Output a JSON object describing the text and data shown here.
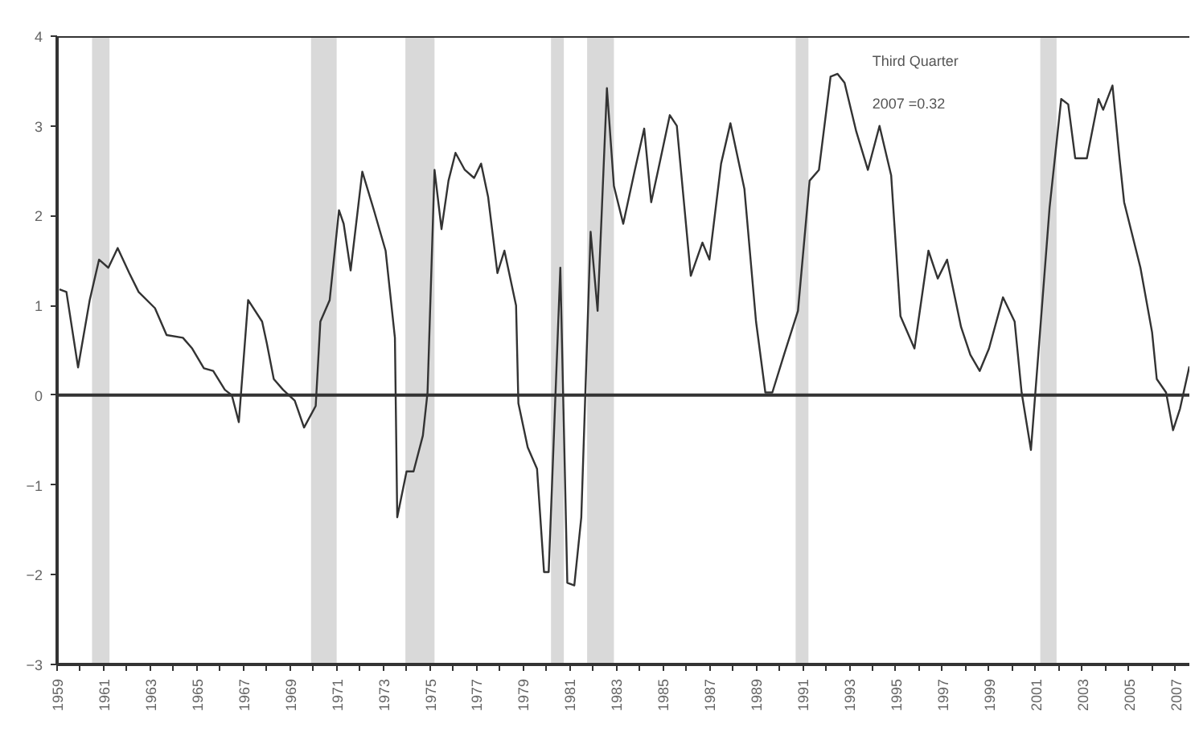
{
  "chart_data": {
    "type": "line",
    "annotations": [
      "Third Quarter",
      "2007 =0.32"
    ],
    "x": [
      1959.1,
      1959.4,
      1959.9,
      1960.4,
      1960.8,
      1961.2,
      1961.6,
      1962.1,
      1962.5,
      1963.2,
      1963.7,
      1964.4,
      1964.8,
      1965.3,
      1965.7,
      1966.2,
      1966.5,
      1966.8,
      1967.2,
      1967.8,
      1968.0,
      1968.3,
      1968.7,
      1969.2,
      1969.6,
      1970.1,
      1970.3,
      1970.7,
      1971.1,
      1971.3,
      1971.6,
      1972.1,
      1972.6,
      1973.1,
      1973.5,
      1973.6,
      1974.0,
      1974.3,
      1974.7,
      1974.9,
      1975.2,
      1975.5,
      1975.8,
      1976.1,
      1976.5,
      1976.9,
      1977.2,
      1977.5,
      1977.9,
      1978.2,
      1978.7,
      1978.8,
      1979.2,
      1979.6,
      1979.9,
      1980.1,
      1980.6,
      1980.9,
      1981.2,
      1981.5,
      1981.9,
      1982.2,
      1982.6,
      1982.9,
      1983.3,
      1983.8,
      1984.2,
      1984.5,
      1984.8,
      1985.3,
      1985.6,
      1986.2,
      1986.7,
      1987.0,
      1987.5,
      1987.9,
      1988.5,
      1989.0,
      1989.4,
      1989.7,
      1990.2,
      1990.8,
      1991.3,
      1991.7,
      1992.2,
      1992.5,
      1992.8,
      1993.3,
      1993.8,
      1994.3,
      1994.8,
      1995.2,
      1995.8,
      1996.4,
      1996.8,
      1997.2,
      1997.8,
      1998.2,
      1998.6,
      1999.0,
      1999.6,
      2000.1,
      2000.4,
      2000.8,
      2001.6,
      2002.1,
      2002.4,
      2002.7,
      2003.2,
      2003.7,
      2003.9,
      2004.3,
      2004.6,
      2004.8,
      2005.5,
      2006.0,
      2006.2,
      2006.6,
      2006.9,
      2007.2,
      2007.6
    ],
    "series": [
      {
        "color": "#333333",
        "values": [
          1.18,
          1.15,
          0.31,
          1.06,
          1.51,
          1.42,
          1.64,
          1.36,
          1.15,
          0.97,
          0.67,
          0.64,
          0.52,
          0.3,
          0.27,
          0.06,
          0.0,
          -0.3,
          1.06,
          0.82,
          0.58,
          0.18,
          0.06,
          -0.06,
          -0.36,
          -0.12,
          0.82,
          1.06,
          2.06,
          1.91,
          1.39,
          2.49,
          2.06,
          1.61,
          0.64,
          -1.36,
          -0.85,
          -0.85,
          -0.45,
          0.03,
          2.51,
          1.85,
          2.39,
          2.7,
          2.51,
          2.42,
          2.58,
          2.21,
          1.36,
          1.61,
          1.0,
          -0.09,
          -0.58,
          -0.82,
          -1.97,
          -1.97,
          1.42,
          -2.09,
          -2.12,
          -1.36,
          1.82,
          0.94,
          3.42,
          2.33,
          1.91,
          2.51,
          2.97,
          2.15,
          2.51,
          3.12,
          3.0,
          1.33,
          1.7,
          1.51,
          2.58,
          3.03,
          2.3,
          0.82,
          0.03,
          0.03,
          0.45,
          0.94,
          2.39,
          2.51,
          3.55,
          3.58,
          3.48,
          2.94,
          2.51,
          3.0,
          2.45,
          0.88,
          0.52,
          1.61,
          1.3,
          1.51,
          0.76,
          0.45,
          0.27,
          0.52,
          1.09,
          0.82,
          0.03,
          -0.61,
          2.09,
          3.3,
          3.24,
          2.64,
          2.64,
          3.3,
          3.18,
          3.45,
          2.64,
          2.15,
          1.42,
          0.7,
          0.18,
          0.03,
          -0.39,
          -0.15,
          0.32
        ]
      }
    ],
    "xlim": [
      1959,
      2007.6
    ],
    "xticks": [
      1959,
      {
        "value": 1960,
        "label": null
      },
      1961,
      {
        "value": 1962,
        "label": null
      },
      1963,
      {
        "value": 1964,
        "label": null
      },
      1965,
      {
        "value": 1966,
        "label": null
      },
      1967,
      {
        "value": 1968,
        "label": null
      },
      1969,
      {
        "value": 1970,
        "label": null
      },
      1971,
      {
        "value": 1972,
        "label": null
      },
      1973,
      {
        "value": 1974,
        "label": null
      },
      1975,
      {
        "value": 1976,
        "label": null
      },
      1977,
      {
        "value": 1978,
        "label": null
      },
      1979,
      {
        "value": 1980,
        "label": null
      },
      1981,
      {
        "value": 1982,
        "label": null
      },
      1983,
      {
        "value": 1984,
        "label": null
      },
      1985,
      {
        "value": 1986,
        "label": null
      },
      1987,
      {
        "value": 1988,
        "label": null
      },
      1989,
      {
        "value": 1990,
        "label": null
      },
      1991,
      {
        "value": 1992,
        "label": null
      },
      1993,
      {
        "value": 1994,
        "label": null
      },
      1995,
      {
        "value": 1996,
        "label": null
      },
      1997,
      {
        "value": 1998,
        "label": null
      },
      1999,
      {
        "value": 2000,
        "label": null
      },
      2001,
      {
        "value": 2002,
        "label": null
      },
      2003,
      {
        "value": 2004,
        "label": null
      },
      2005,
      {
        "value": 2006,
        "label": null
      },
      2007
    ],
    "ylim": [
      -3,
      4
    ],
    "yticks": [
      -3,
      -2,
      -1,
      0,
      1,
      2,
      3,
      4
    ],
    "ref_lines": [
      {
        "axis": "y",
        "value": 0,
        "color": "#333333"
      }
    ],
    "bands": [
      {
        "axis": "x",
        "from": 1960.5,
        "to": 1961.25,
        "color": "#d9d9d9"
      },
      {
        "axis": "x",
        "from": 1969.9,
        "to": 1971.0,
        "color": "#d9d9d9"
      },
      {
        "axis": "x",
        "from": 1973.95,
        "to": 1975.2,
        "color": "#d9d9d9"
      },
      {
        "axis": "x",
        "from": 1980.2,
        "to": 1980.75,
        "color": "#d9d9d9"
      },
      {
        "axis": "x",
        "from": 1981.75,
        "to": 1982.9,
        "color": "#d9d9d9"
      },
      {
        "axis": "x",
        "from": 1990.7,
        "to": 1991.25,
        "color": "#d9d9d9"
      },
      {
        "axis": "x",
        "from": 2001.2,
        "to": 2001.9,
        "color": "#d9d9d9"
      }
    ],
    "grid": false,
    "marker": "none",
    "line_style": "solid"
  }
}
